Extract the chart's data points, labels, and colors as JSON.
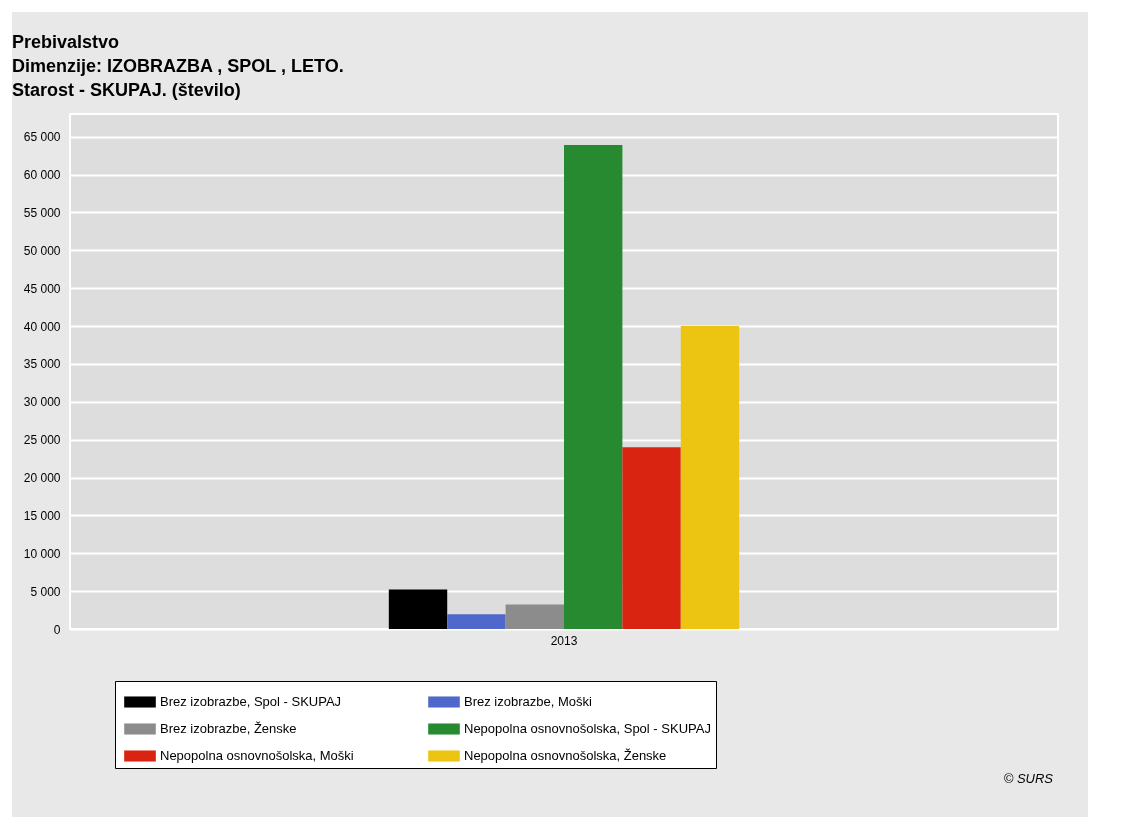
{
  "chart_data": {
    "type": "bar",
    "title": "Prebivalstvo\nDimenzije: IZOBRAZBA , SPOL , LETO.\nStarost - SKUPAJ. (število)",
    "categories": [
      "2013"
    ],
    "series": [
      {
        "name": "Brez izobrazbe, Spol - SKUPAJ",
        "color": "#000000",
        "values": [
          5200
        ]
      },
      {
        "name": "Brez izobrazbe, Moški",
        "color": "#5068cc",
        "values": [
          1950
        ]
      },
      {
        "name": "Brez izobrazbe, Ženske",
        "color": "#8c8c8c",
        "values": [
          3250
        ]
      },
      {
        "name": "Nepopolna osnovnošolska, Spol - SKUPAJ",
        "color": "#288a30",
        "values": [
          63900
        ]
      },
      {
        "name": "Nepopolna osnovnošolska, Moški",
        "color": "#d82410",
        "values": [
          24000
        ]
      },
      {
        "name": "Nepopolna osnovnošolska, Ženske",
        "color": "#ecc412",
        "values": [
          40000
        ]
      }
    ],
    "ylim": [
      0,
      68000
    ],
    "yticks": [
      {
        "value": 0,
        "label": "0"
      },
      {
        "value": 5000,
        "label": "5 000"
      },
      {
        "value": 10000,
        "label": "10 000"
      },
      {
        "value": 15000,
        "label": "15 000"
      },
      {
        "value": 20000,
        "label": "20 000"
      },
      {
        "value": 25000,
        "label": "25 000"
      },
      {
        "value": 30000,
        "label": "30 000"
      },
      {
        "value": 35000,
        "label": "35 000"
      },
      {
        "value": 40000,
        "label": "40 000"
      },
      {
        "value": 45000,
        "label": "45 000"
      },
      {
        "value": 50000,
        "label": "50 000"
      },
      {
        "value": 55000,
        "label": "55 000"
      },
      {
        "value": 60000,
        "label": "60 000"
      },
      {
        "value": 65000,
        "label": "65 000"
      }
    ],
    "grid": "y",
    "legend": "bottom",
    "annotations": [
      "© SURS"
    ]
  }
}
